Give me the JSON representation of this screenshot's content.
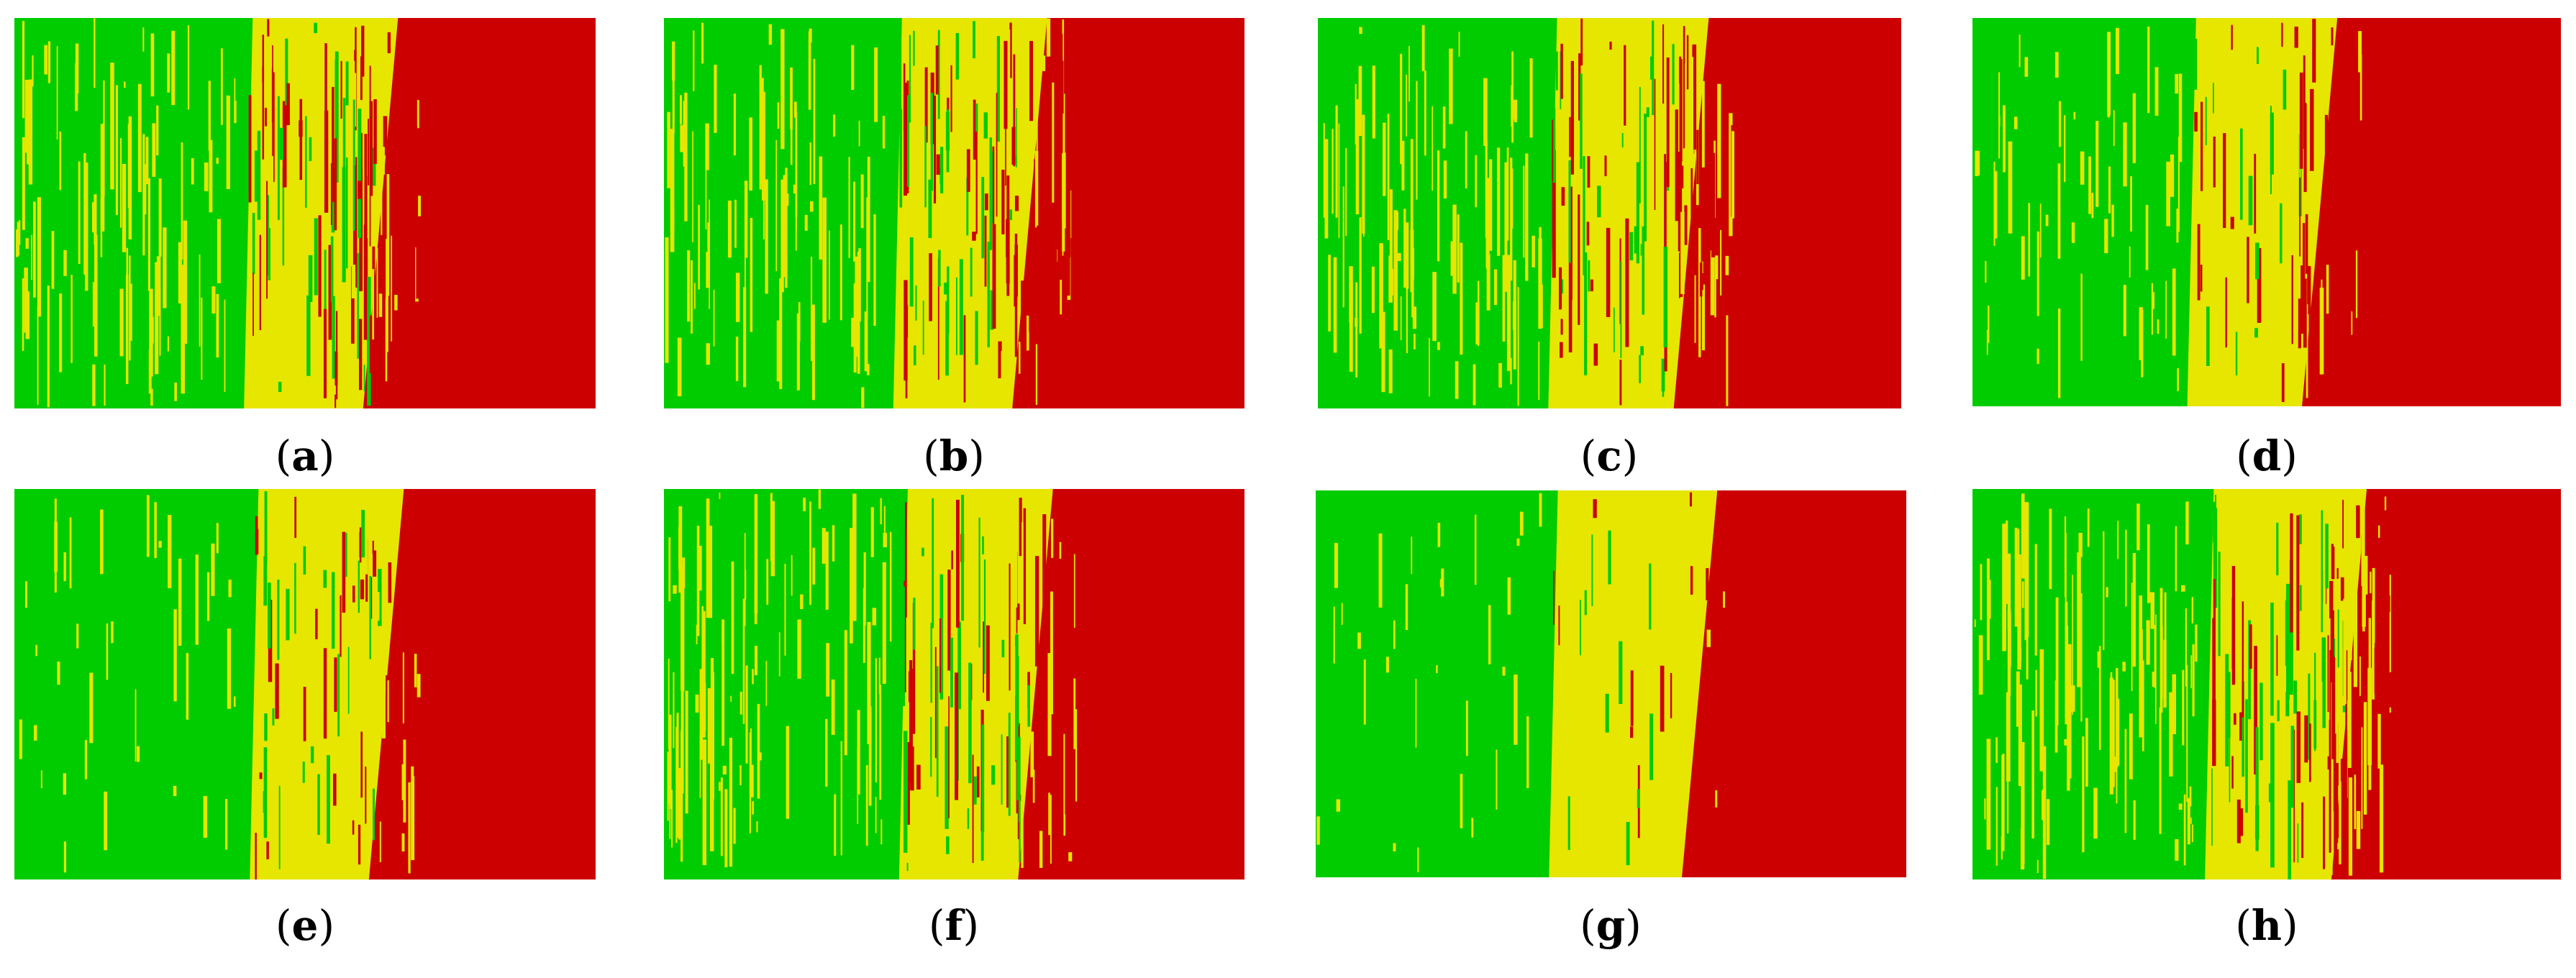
{
  "colors": {
    "green": "#00cc00",
    "yellow": "#e6e600",
    "red": "#cc0000"
  },
  "panels": [
    {
      "id": "a",
      "caption": "a",
      "g_end": 0.4,
      "y_end": 0.62,
      "noise": 0.85,
      "seed": 11
    },
    {
      "id": "b",
      "caption": "b",
      "g_end": 0.4,
      "y_end": 0.62,
      "noise": 0.85,
      "seed": 23
    },
    {
      "id": "c",
      "caption": "c",
      "g_end": 0.4,
      "y_end": 0.63,
      "noise": 0.85,
      "seed": 37
    },
    {
      "id": "d",
      "caption": "d",
      "g_end": 0.37,
      "y_end": 0.58,
      "noise": 0.5,
      "seed": 41
    },
    {
      "id": "e",
      "caption": "e",
      "g_end": 0.41,
      "y_end": 0.63,
      "noise": 0.45,
      "seed": 53
    },
    {
      "id": "f",
      "caption": "f",
      "g_end": 0.41,
      "y_end": 0.63,
      "noise": 0.85,
      "seed": 67
    },
    {
      "id": "g",
      "caption": "g",
      "g_end": 0.4,
      "y_end": 0.64,
      "noise": 0.25,
      "seed": 79
    },
    {
      "id": "h",
      "caption": "h",
      "g_end": 0.4,
      "y_end": 0.63,
      "noise": 1.0,
      "seed": 97
    }
  ]
}
